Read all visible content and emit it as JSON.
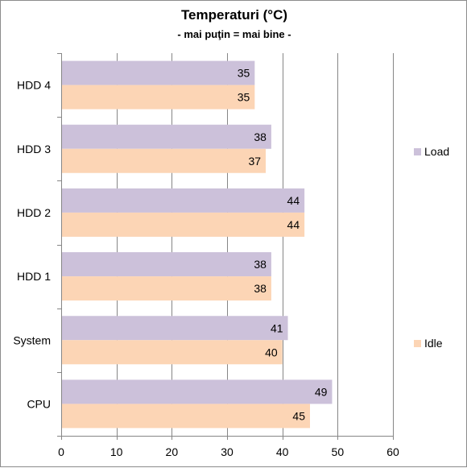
{
  "title": "Temperaturi (°C)",
  "subtitle": "- mai puţin = mai bine -",
  "colors": {
    "load": "#ccc1da",
    "idle": "#fcd5b5",
    "grid": "#868686"
  },
  "chart_data": {
    "type": "bar",
    "orientation": "horizontal",
    "categories": [
      "CPU",
      "System",
      "HDD 1",
      "HDD 2",
      "HDD 3",
      "HDD 4"
    ],
    "series": [
      {
        "name": "Load",
        "values": [
          49,
          41,
          38,
          44,
          38,
          35
        ]
      },
      {
        "name": "Idle",
        "values": [
          45,
          40,
          38,
          44,
          37,
          35
        ]
      }
    ],
    "xlim": [
      0,
      60
    ],
    "xticks": [
      "0",
      "10",
      "20",
      "30",
      "40",
      "50",
      "60"
    ],
    "grid": true,
    "legend": "right",
    "data_labels": true
  }
}
